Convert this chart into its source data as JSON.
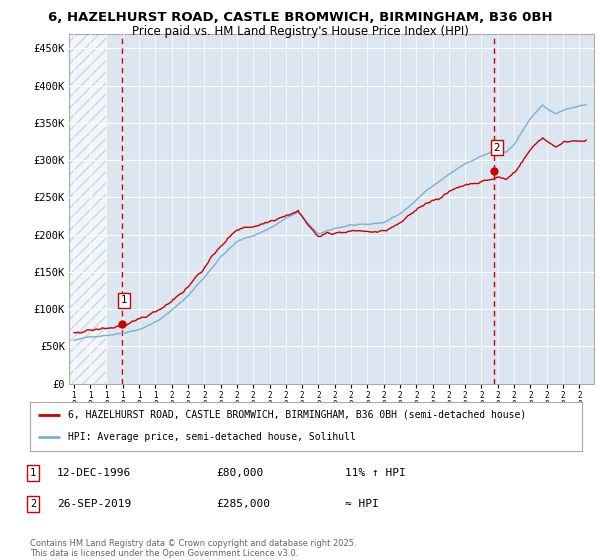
{
  "title_line1": "6, HAZELHURST ROAD, CASTLE BROMWICH, BIRMINGHAM, B36 0BH",
  "title_line2": "Price paid vs. HM Land Registry's House Price Index (HPI)",
  "ylim": [
    0,
    470000
  ],
  "yticks": [
    0,
    50000,
    100000,
    150000,
    200000,
    250000,
    300000,
    350000,
    400000,
    450000
  ],
  "ytick_labels": [
    "£0",
    "£50K",
    "£100K",
    "£150K",
    "£200K",
    "£250K",
    "£300K",
    "£350K",
    "£400K",
    "£450K"
  ],
  "background_color": "#ffffff",
  "plot_bg_color": "#dce6f1",
  "hatch_color": "#b8c4d4",
  "grid_color": "#ffffff",
  "legend_label_red": "6, HAZELHURST ROAD, CASTLE BROMWICH, BIRMINGHAM, B36 0BH (semi-detached house)",
  "legend_label_blue": "HPI: Average price, semi-detached house, Solihull",
  "marker1_date": "12-DEC-1996",
  "marker1_price": "£80,000",
  "marker1_hpi": "11% ↑ HPI",
  "marker2_date": "26-SEP-2019",
  "marker2_price": "£285,000",
  "marker2_hpi": "≈ HPI",
  "footer": "Contains HM Land Registry data © Crown copyright and database right 2025.\nThis data is licensed under the Open Government Licence v3.0.",
  "red_color": "#cc0000",
  "blue_color": "#7bafd4",
  "dashed_red": "#cc0000",
  "x_start_year": 1994,
  "x_end_year": 2025,
  "sale1_year": 1996.958,
  "sale1_value": 80000,
  "sale2_year": 2019.74,
  "sale2_value": 285000
}
